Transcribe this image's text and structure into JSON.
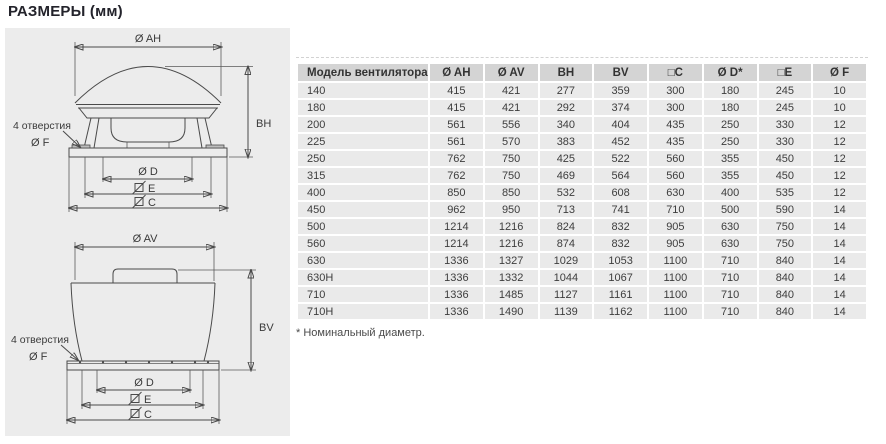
{
  "page": {
    "title": "РАЗМЕРЫ (мм)"
  },
  "diagram": {
    "top": {
      "width_label": "Ø AH",
      "height_label": "BH",
      "holes_label": "4 отверстия",
      "holes_dia_label": "Ø F",
      "dia_d_label": "Ø D",
      "square_e_label": "E",
      "square_c_label": "C"
    },
    "bottom": {
      "width_label": "Ø AV",
      "height_label": "BV",
      "holes_label": "4 отверстия",
      "holes_dia_label": "Ø F",
      "dia_d_label": "Ø D",
      "square_e_label": "E",
      "square_c_label": "C"
    }
  },
  "table": {
    "columns": [
      "Модель вентилятора",
      "Ø AH",
      "Ø AV",
      "BH",
      "BV",
      "□C",
      "Ø D*",
      "□E",
      "Ø F"
    ],
    "rows": [
      [
        "140",
        "415",
        "421",
        "277",
        "359",
        "300",
        "180",
        "245",
        "10"
      ],
      [
        "180",
        "415",
        "421",
        "292",
        "374",
        "300",
        "180",
        "245",
        "10"
      ],
      [
        "200",
        "561",
        "556",
        "340",
        "404",
        "435",
        "250",
        "330",
        "12"
      ],
      [
        "225",
        "561",
        "570",
        "383",
        "452",
        "435",
        "250",
        "330",
        "12"
      ],
      [
        "250",
        "762",
        "750",
        "425",
        "522",
        "560",
        "355",
        "450",
        "12"
      ],
      [
        "315",
        "762",
        "750",
        "469",
        "564",
        "560",
        "355",
        "450",
        "12"
      ],
      [
        "400",
        "850",
        "850",
        "532",
        "608",
        "630",
        "400",
        "535",
        "12"
      ],
      [
        "450",
        "962",
        "950",
        "713",
        "741",
        "710",
        "500",
        "590",
        "14"
      ],
      [
        "500",
        "1214",
        "1216",
        "824",
        "832",
        "905",
        "630",
        "750",
        "14"
      ],
      [
        "560",
        "1214",
        "1216",
        "874",
        "832",
        "905",
        "630",
        "750",
        "14"
      ],
      [
        "630",
        "1336",
        "1327",
        "1029",
        "1053",
        "1100",
        "710",
        "840",
        "14"
      ],
      [
        "630H",
        "1336",
        "1332",
        "1044",
        "1067",
        "1100",
        "710",
        "840",
        "14"
      ],
      [
        "710",
        "1336",
        "1485",
        "1127",
        "1161",
        "1100",
        "710",
        "840",
        "14"
      ],
      [
        "710H",
        "1336",
        "1490",
        "1139",
        "1162",
        "1100",
        "710",
        "840",
        "14"
      ]
    ],
    "footnote": "* Номинальный диаметр."
  },
  "colors": {
    "panel_bg": "#ececec",
    "table_header_bg": "#d4d4d4",
    "table_row_bg": "#eaeaea",
    "drawing_line": "#4a4a4a",
    "text": "#3d3d3d"
  }
}
